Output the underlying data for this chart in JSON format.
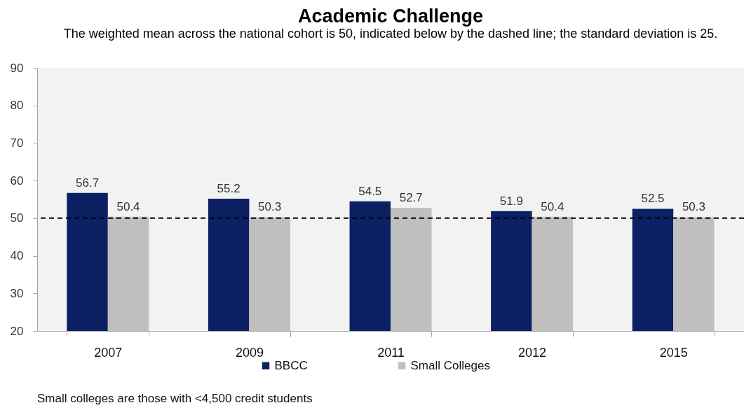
{
  "chart_data": {
    "type": "bar",
    "title": "Academic Challenge",
    "subtitle": "The weighted mean across the national cohort is 50, indicated below by the dashed line; the standard deviation is 25.",
    "categories": [
      "2007",
      "2009",
      "2011",
      "2012",
      "2015"
    ],
    "series": [
      {
        "name": "BBCC",
        "color": "#0c2163",
        "values": [
          56.7,
          55.2,
          54.5,
          51.9,
          52.5
        ]
      },
      {
        "name": "Small Colleges",
        "color": "#bfbfbf",
        "values": [
          50.4,
          50.3,
          52.7,
          50.4,
          50.3
        ]
      }
    ],
    "ylim": [
      20,
      90
    ],
    "yticks": [
      20,
      30,
      40,
      50,
      60,
      70,
      80,
      90
    ],
    "grid": false,
    "legend": "bottom",
    "data_labels": true,
    "ref_lines": [
      {
        "axis": "y",
        "value": 50,
        "color": "#000000",
        "line_style": "dashed"
      }
    ],
    "annotations": [
      "Small colleges are those with <4,500 credit students"
    ]
  }
}
